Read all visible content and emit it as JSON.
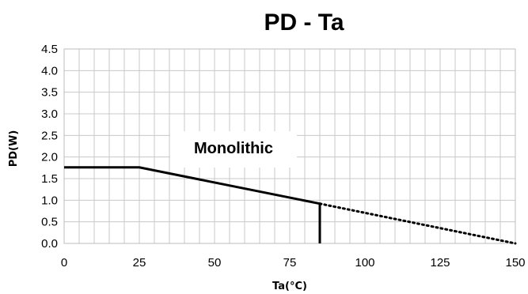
{
  "chart_data": {
    "type": "line",
    "title": "PD - Ta",
    "xlabel": "Ta(°C)",
    "ylabel": "PD(W)",
    "xlim": [
      0,
      150
    ],
    "ylim": [
      0,
      4.5
    ],
    "x_ticks": [
      "0",
      "25",
      "50",
      "75",
      "100",
      "125",
      "150"
    ],
    "y_ticks": [
      "0.0",
      "0.5",
      "1.0",
      "1.5",
      "2.0",
      "2.5",
      "3.0",
      "3.5",
      "4.0",
      "4.5"
    ],
    "grid": true,
    "grid_minor_x_step": 5,
    "grid_minor_y_step": 0.5,
    "annotation": "Monolithic",
    "series": [
      {
        "style": "solid",
        "color": "#000000",
        "points": [
          [
            0,
            1.76
          ],
          [
            25,
            1.76
          ],
          [
            85,
            0.92
          ],
          [
            85,
            0.0
          ]
        ]
      },
      {
        "style": "dotted",
        "color": "#000000",
        "points": [
          [
            85,
            0.92
          ],
          [
            150,
            0.0
          ]
        ]
      }
    ]
  }
}
